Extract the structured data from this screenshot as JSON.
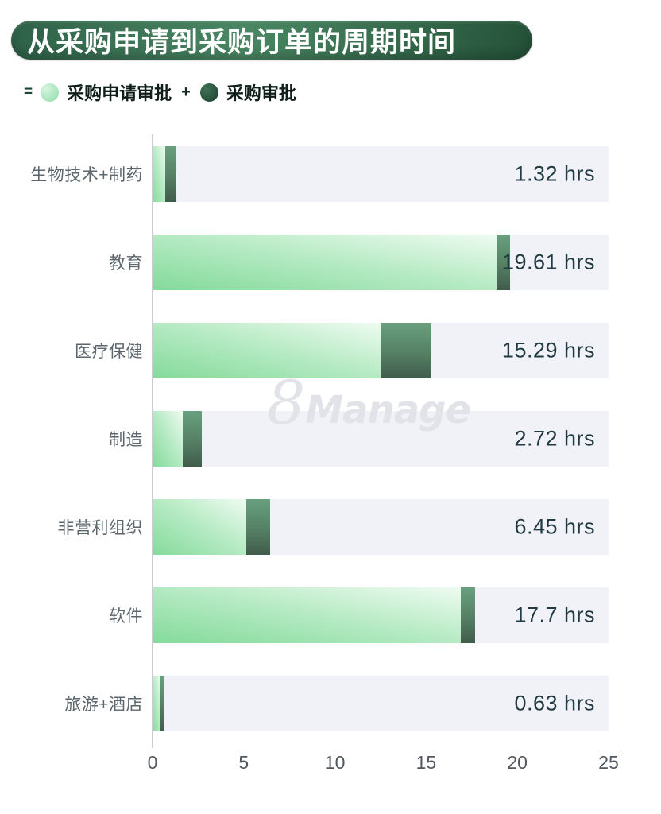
{
  "title": "从采购申请到采购订单的周期时间",
  "legend": {
    "equals": "=",
    "plus": "+",
    "series1": "采购申请审批",
    "series2": "采购审批"
  },
  "watermark": {
    "eight": "8",
    "manage": "Manage"
  },
  "colors": {
    "banner_green_dark": "#245138",
    "banner_green_mid": "#4a8763",
    "series_light_green": "#84da9b",
    "series_light_green_fade": "#eefbf1",
    "series_dark_green_top": "#68a07e",
    "series_dark_green_bottom": "#415c4b",
    "track_background": "#f0f2f8",
    "axis_line": "#c9ccd3",
    "category_label": "#5c666d",
    "value_label": "#223a41"
  },
  "chart_data": {
    "type": "bar",
    "orientation": "horizontal",
    "stacked": true,
    "title": "从采购申请到采购订单的周期时间",
    "unit": "hrs",
    "categories": [
      "生物技术+制药",
      "教育",
      "医疗保健",
      "制造",
      "非营利组织",
      "软件",
      "旅游+酒店"
    ],
    "series": [
      {
        "name": "采购申请审批",
        "values": [
          0.7,
          18.85,
          12.5,
          1.65,
          5.15,
          16.9,
          0.45
        ]
      },
      {
        "name": "采购审批",
        "values": [
          0.62,
          0.76,
          2.79,
          1.07,
          1.3,
          0.8,
          0.18
        ]
      }
    ],
    "totals": [
      1.32,
      19.61,
      15.29,
      2.72,
      6.45,
      17.7,
      0.63
    ],
    "value_labels": [
      "1.32 hrs",
      "19.61 hrs",
      "15.29 hrs",
      "2.72 hrs",
      "6.45 hrs",
      "17.7 hrs",
      "0.63 hrs"
    ],
    "xlabel": "",
    "ylabel": "",
    "xlim": [
      0,
      25
    ],
    "x_ticks": [
      0,
      5,
      10,
      15,
      20,
      25
    ],
    "grid": false,
    "legend_position": "top-left"
  }
}
